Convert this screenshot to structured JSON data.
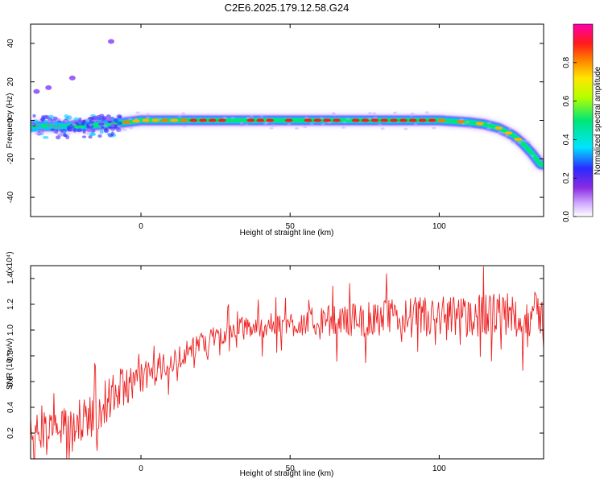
{
  "title": "C2E6.2025.179.12.58.G24",
  "chart_data": [
    {
      "type": "heatmap",
      "xlabel": "Height of straight line (km)",
      "ylabel": "Frequency (Hz)",
      "xlim": [
        -37,
        135
      ],
      "ylim": [
        -50,
        50
      ],
      "x_ticks": [
        "0",
        "50",
        "100"
      ],
      "y_ticks": [
        "-40",
        "-20",
        "0",
        "20",
        "40"
      ],
      "colorbar": {
        "label": "Normalized spectral amplitude",
        "range": [
          0,
          1
        ],
        "ticks": [
          "0.0",
          "0.2",
          "0.4",
          "0.6",
          "0.8"
        ]
      },
      "ridge": [
        {
          "x": -37,
          "y": -3
        },
        {
          "x": -20,
          "y": -3
        },
        {
          "x": -10,
          "y": -2
        },
        {
          "x": 0,
          "y": 0
        },
        {
          "x": 20,
          "y": 0
        },
        {
          "x": 50,
          "y": 0
        },
        {
          "x": 80,
          "y": 0
        },
        {
          "x": 100,
          "y": 0
        },
        {
          "x": 110,
          "y": -1
        },
        {
          "x": 115,
          "y": -2
        },
        {
          "x": 120,
          "y": -4
        },
        {
          "x": 125,
          "y": -8
        },
        {
          "x": 128,
          "y": -12
        },
        {
          "x": 131,
          "y": -17
        },
        {
          "x": 133,
          "y": -21
        },
        {
          "x": 134,
          "y": -23
        }
      ],
      "outliers": [
        {
          "x": -35,
          "y": 15
        },
        {
          "x": -31,
          "y": 17
        },
        {
          "x": -23,
          "y": 22
        },
        {
          "x": -10,
          "y": 41
        }
      ]
    },
    {
      "type": "line",
      "xlabel": "Height of straight line (km)",
      "ylabel": "SNR (10 * v/v)",
      "y_multiplier": "(x10⁴)",
      "xlim": [
        -37,
        135
      ],
      "ylim": [
        0.0,
        1.5
      ],
      "x_ticks": [
        "0",
        "50",
        "100"
      ],
      "y_ticks": [
        "0.2",
        "0.4",
        "0.6",
        "0.8",
        "1.0",
        "1.2",
        "1.4"
      ],
      "color": "#ee2222",
      "trend": [
        {
          "x": -37,
          "y": 0.22
        },
        {
          "x": -30,
          "y": 0.22
        },
        {
          "x": -25,
          "y": 0.25
        },
        {
          "x": -20,
          "y": 0.3
        },
        {
          "x": -15,
          "y": 0.38
        },
        {
          "x": -10,
          "y": 0.48
        },
        {
          "x": -5,
          "y": 0.58
        },
        {
          "x": 0,
          "y": 0.63
        },
        {
          "x": 5,
          "y": 0.68
        },
        {
          "x": 10,
          "y": 0.75
        },
        {
          "x": 15,
          "y": 0.83
        },
        {
          "x": 20,
          "y": 0.9
        },
        {
          "x": 25,
          "y": 0.95
        },
        {
          "x": 30,
          "y": 1.0
        },
        {
          "x": 40,
          "y": 1.03
        },
        {
          "x": 50,
          "y": 1.05
        },
        {
          "x": 60,
          "y": 1.07
        },
        {
          "x": 70,
          "y": 1.08
        },
        {
          "x": 80,
          "y": 1.09
        },
        {
          "x": 90,
          "y": 1.1
        },
        {
          "x": 100,
          "y": 1.1
        },
        {
          "x": 110,
          "y": 1.11
        },
        {
          "x": 120,
          "y": 1.12
        },
        {
          "x": 130,
          "y": 1.12
        },
        {
          "x": 135,
          "y": 1.12
        }
      ],
      "noise": [
        {
          "x": -37,
          "y": 0.15
        },
        {
          "x": -20,
          "y": 0.16
        },
        {
          "x": -10,
          "y": 0.18
        },
        {
          "x": 0,
          "y": 0.12
        },
        {
          "x": 20,
          "y": 0.08
        },
        {
          "x": 50,
          "y": 0.1
        },
        {
          "x": 90,
          "y": 0.16
        },
        {
          "x": 135,
          "y": 0.18
        }
      ]
    }
  ]
}
